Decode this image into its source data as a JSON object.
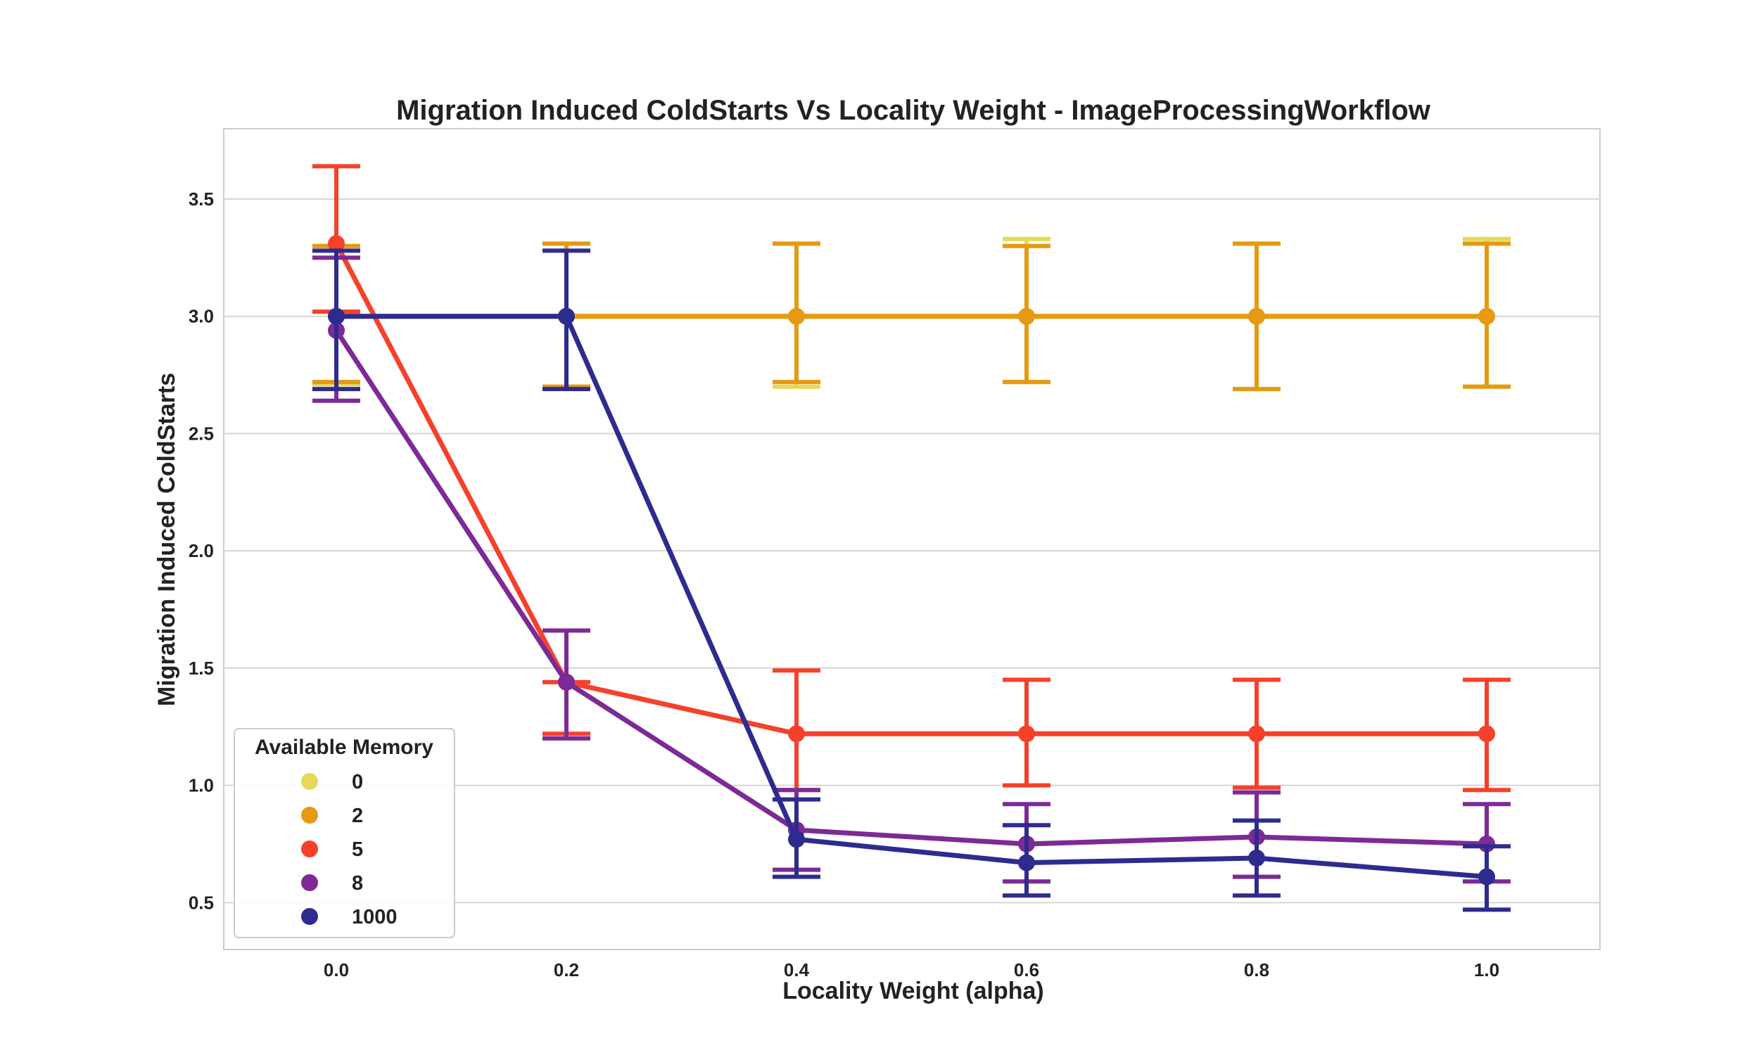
{
  "chart_data": {
    "type": "line",
    "title": "Migration Induced ColdStarts Vs Locality Weight - ImageProcessingWorkflow",
    "xlabel": "Locality Weight (alpha)",
    "ylabel": "Migration Induced ColdStarts",
    "categories": [
      "0.0",
      "0.2",
      "0.4",
      "0.6",
      "0.8",
      "1.0"
    ],
    "ylim": [
      0.3,
      3.8
    ],
    "yticks": [
      "0.5",
      "1.0",
      "1.5",
      "2.0",
      "2.5",
      "3.0",
      "3.5"
    ],
    "grid": true,
    "legend": {
      "title": "Available Memory",
      "position": "bottom-left"
    },
    "series": [
      {
        "name": "0",
        "color": "#e6d85a",
        "values": [
          3.0,
          3.0,
          3.0,
          3.0,
          3.0,
          3.0
        ],
        "err_low": [
          2.71,
          2.7,
          2.7,
          2.72,
          2.69,
          2.7
        ],
        "err_high": [
          3.3,
          3.31,
          3.31,
          3.33,
          3.31,
          3.33
        ]
      },
      {
        "name": "2",
        "color": "#e59a12",
        "values": [
          3.0,
          3.0,
          3.0,
          3.0,
          3.0,
          3.0
        ],
        "err_low": [
          2.72,
          2.7,
          2.72,
          2.72,
          2.69,
          2.7
        ],
        "err_high": [
          3.3,
          3.31,
          3.31,
          3.3,
          3.31,
          3.31
        ]
      },
      {
        "name": "5",
        "color": "#f5412b",
        "values": [
          3.31,
          1.44,
          1.22,
          1.22,
          1.22,
          1.22
        ],
        "err_low": [
          3.02,
          1.22,
          0.98,
          1.0,
          0.99,
          0.98
        ],
        "err_high": [
          3.64,
          1.44,
          1.49,
          1.45,
          1.45,
          1.45
        ]
      },
      {
        "name": "8",
        "color": "#7d2a96",
        "values": [
          2.94,
          1.44,
          0.81,
          0.75,
          0.78,
          0.75
        ],
        "err_low": [
          2.64,
          1.2,
          0.64,
          0.59,
          0.61,
          0.59
        ],
        "err_high": [
          3.25,
          1.66,
          0.98,
          0.92,
          0.97,
          0.92
        ]
      },
      {
        "name": "1000",
        "color": "#2e2b8f",
        "values": [
          3.0,
          3.0,
          0.77,
          0.67,
          0.69,
          0.61
        ],
        "err_low": [
          2.69,
          2.69,
          0.61,
          0.53,
          0.53,
          0.47
        ],
        "err_high": [
          3.28,
          3.28,
          0.94,
          0.83,
          0.85,
          0.74
        ]
      }
    ]
  }
}
